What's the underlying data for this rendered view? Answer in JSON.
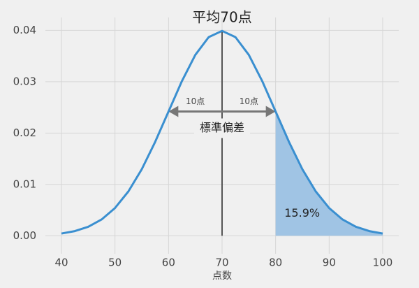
{
  "chart_data": {
    "type": "line",
    "xlabel": "点数",
    "x": [
      40,
      42.5,
      45,
      47.5,
      50,
      52.5,
      55,
      57.5,
      60,
      62.5,
      65,
      67.5,
      70,
      72.5,
      75,
      77.5,
      80,
      82.5,
      85,
      87.5,
      90,
      92.5,
      95,
      97.5,
      100
    ],
    "series": [
      {
        "color": "#3a8fd0",
        "values": [
          0.00044,
          0.00091,
          0.00175,
          0.00317,
          0.0054,
          0.00863,
          0.01295,
          0.01827,
          0.0242,
          0.03011,
          0.03521,
          0.03867,
          0.03989,
          0.03867,
          0.03521,
          0.03011,
          0.0242,
          0.01827,
          0.01295,
          0.00863,
          0.0054,
          0.00317,
          0.00175,
          0.00091,
          0.00044
        ]
      }
    ],
    "area": {
      "color": "#a0c4e4",
      "x": [
        80,
        82.5,
        85,
        87.5,
        90,
        92.5,
        95,
        97.5,
        100
      ],
      "values": [
        0.0242,
        0.01827,
        0.01295,
        0.00863,
        0.0054,
        0.00317,
        0.00175,
        0.00091,
        0.00044
      ]
    },
    "annotations": {
      "mean": "平均70点",
      "left": "10点",
      "right": "10点",
      "sd": "標準偏差",
      "tail": "15.9%"
    },
    "xlim": [
      37,
      103
    ],
    "ylim": [
      -0.0035,
      0.0425
    ],
    "xticks": [
      40,
      50,
      60,
      70,
      80,
      90,
      100
    ],
    "yticks": [
      {
        "value": 0,
        "label": "0.00"
      },
      {
        "value": 0.01,
        "label": "0.01"
      },
      {
        "value": 0.02,
        "label": "0.02"
      },
      {
        "value": 0.03,
        "label": "0.03"
      },
      {
        "value": 0.04,
        "label": "0.04"
      }
    ],
    "grid": true
  }
}
